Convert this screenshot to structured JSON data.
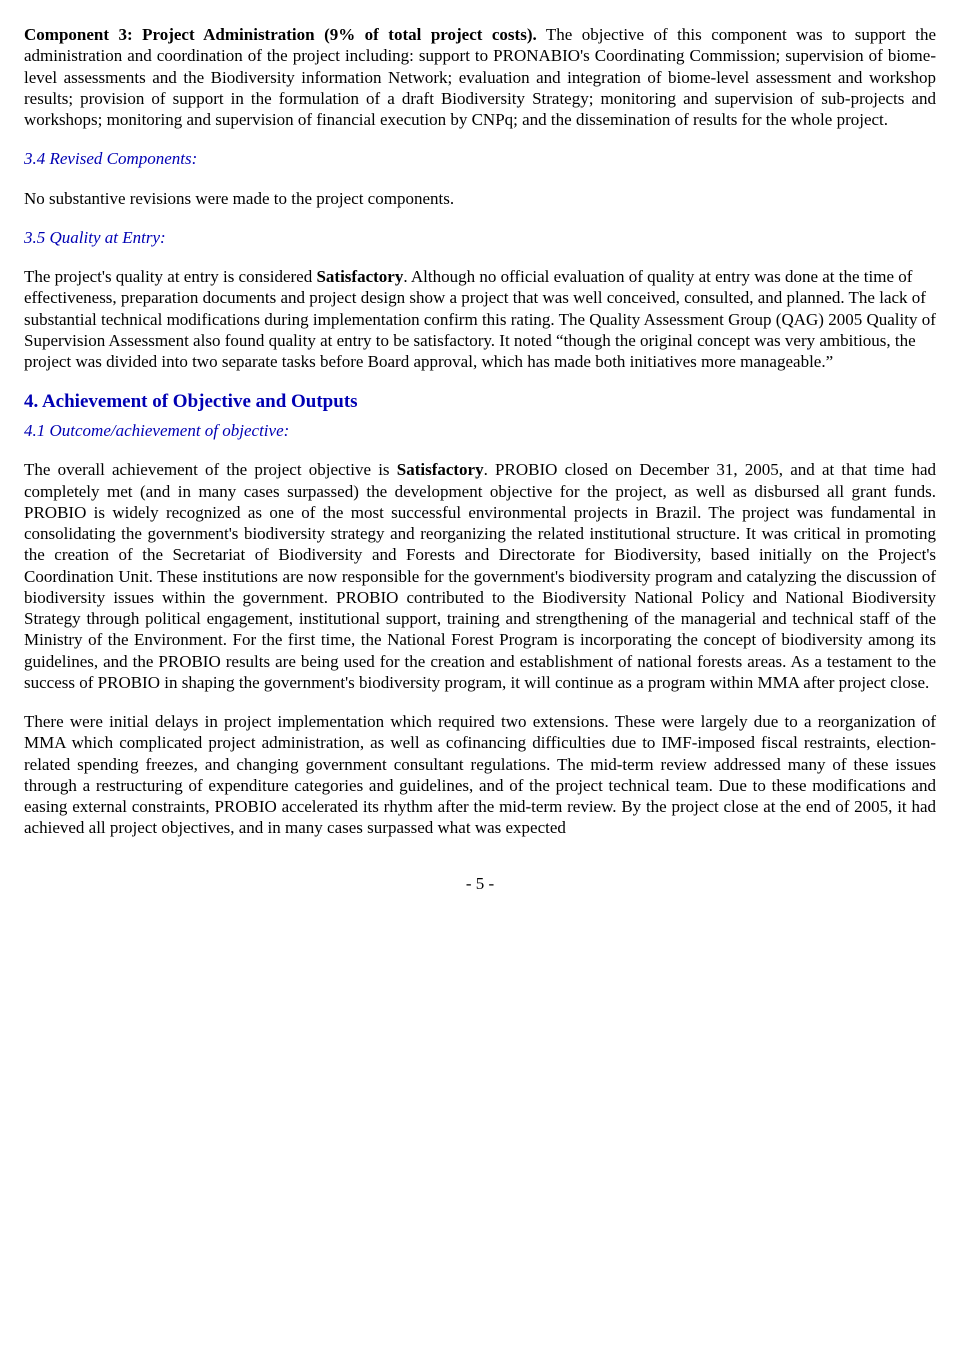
{
  "p1": {
    "leadBold": "Component 3: Project Administration (9% of total project costs).",
    "rest": " The objective of this component was to support the administration and coordination of the project including: support to PRONABIO's Coordinating Commission; supervision of biome-level assessments and the Biodiversity information Network; evaluation and integration of biome-level assessment and workshop results; provision of support in the formulation of a draft Biodiversity Strategy; monitoring and supervision of sub-projects and workshops; monitoring and supervision of financial execution by CNPq; and the dissemination of results for the whole project."
  },
  "h34": "3.4  Revised Components:",
  "p2": "No substantive revisions were made to the project components.",
  "h35": "3.5  Quality at Entry:",
  "p3": {
    "a": "The project's quality at entry is considered ",
    "bold": "Satisfactory",
    "b": ". Although no official evaluation of quality at entry was done at the time of effectiveness, preparation documents and project design show a project that was well conceived, consulted, and planned. The lack of substantial technical modifications during implementation confirm this rating. The Quality Assessment Group (QAG) 2005 Quality of Supervision Assessment also found quality at entry to be satisfactory. It noted “though the original concept was very ambitious, the project was divided into two separate tasks before Board approval, which has made both initiatives more manageable.”"
  },
  "h4": "4.  Achievement of Objective and Outputs",
  "h41": "4.1  Outcome/achievement of objective:",
  "p4": {
    "a": "The overall achievement of the project objective is ",
    "bold": "Satisfactory",
    "b": ". PROBIO closed on December 31, 2005, and at that time had completely met (and in many cases surpassed) the development objective for the project, as well as disbursed all grant funds. PROBIO is widely recognized as one of the most successful environmental projects in Brazil. The project was fundamental in consolidating the government's biodiversity strategy and reorganizing the related institutional structure. It was critical in promoting the creation of the Secretariat of Biodiversity and Forests and Directorate for Biodiversity, based initially on the Project's Coordination Unit. These institutions are now responsible for the government's biodiversity program and catalyzing the discussion of biodiversity issues within the government. PROBIO contributed to the Biodiversity National Policy and National Biodiversity Strategy through political engagement, institutional support, training and strengthening of the managerial and technical staff of the Ministry of the Environment. For the first time, the National Forest Program is incorporating the concept of biodiversity among its guidelines, and the PROBIO results are being used for the creation and establishment of national forests areas. As a testament to the success of PROBIO in shaping the government's biodiversity program, it will continue as a program within MMA after project close."
  },
  "p5": "There were initial delays in project implementation which required two extensions. These were largely due to a reorganization of MMA which complicated project administration, as well as cofinancing difficulties due to IMF-imposed fiscal restraints, election-related spending freezes, and changing government consultant regulations. The mid-term review addressed many of these issues through a restructuring of expenditure categories and guidelines, and of the project technical team. Due to these modifications and easing external constraints, PROBIO accelerated its rhythm after the mid-term review. By the project close at the end of 2005, it had achieved all project objectives, and in many cases surpassed what was expected",
  "pageNumber": "- 5 -"
}
